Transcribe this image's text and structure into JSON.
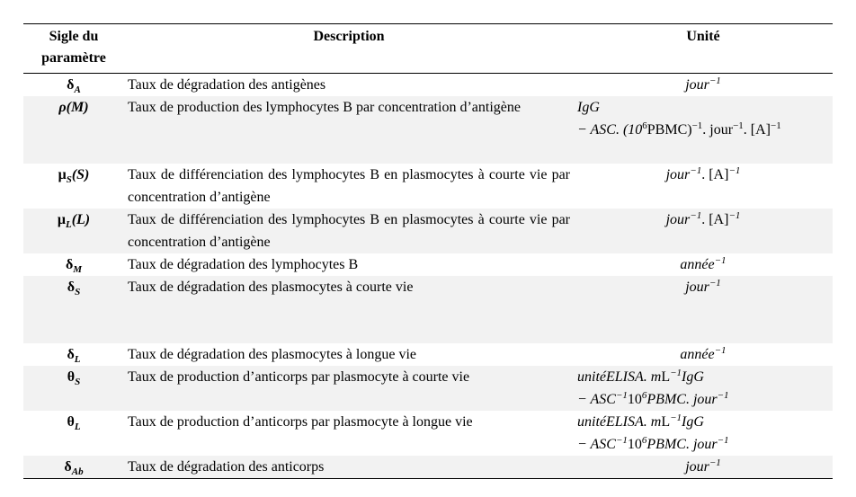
{
  "header": {
    "col1": "Sigle du paramètre",
    "col2": "Description",
    "col3": "Unité"
  },
  "rows": [
    {
      "sym": "δ",
      "sub": "A",
      "desc": "Taux de dégradation des antigènes",
      "unit1": "jour",
      "unit1_sup": "−1"
    },
    {
      "sym": "ρ",
      "arg": "(M)",
      "desc": "Taux de production des lymphocytes B par concentration d’antigène",
      "unit_line1": "IgG",
      "unit_line2_a": "− ASC. (10",
      "unit_line2_b": "6",
      "unit_line2_c": "PBMC)",
      "unit_line2_d": "−1",
      "unit_line2_e": ". jour",
      "unit_line2_f": "−1",
      "unit_line2_g": ". [A]",
      "unit_line2_h": "−1"
    },
    {
      "sym": "μ",
      "sub": "S",
      "arg": "(S)",
      "desc": "Taux de différenciation des lymphocytes B en plasmocytes à courte vie par concentration d’antigène",
      "unit_a": "jour",
      "unit_b": "−1",
      "unit_c": ". [A]",
      "unit_d": "−1"
    },
    {
      "sym": "μ",
      "sub": "L",
      "arg": "(L)",
      "desc": "Taux de différenciation des lymphocytes B en plasmocytes à courte vie par concentration d’antigène",
      "unit_a": "jour",
      "unit_b": "−1",
      "unit_c": ". [A]",
      "unit_d": "−1"
    },
    {
      "sym": "δ",
      "sub": "M",
      "desc": "Taux de dégradation des lymphocytes B",
      "unit1": "année",
      "unit1_sup": "−1"
    },
    {
      "sym": "δ",
      "sub": "S",
      "desc": "Taux de dégradation des plasmocytes à courte vie",
      "unit1": "jour",
      "unit1_sup": "−1"
    },
    {
      "sym": "δ",
      "sub": "L",
      "desc": "Taux de dégradation des plasmocytes à longue vie",
      "unit1": "année",
      "unit1_sup": "−1"
    },
    {
      "sym": "θ",
      "sub": "S",
      "desc": "Taux de production d’anticorps par plasmocyte à courte vie",
      "unit_l1_a": "unitéELISA. m",
      "unit_l1_b": "L",
      "unit_l1_c": "−1",
      "unit_l1_d": "IgG",
      "unit_l2_a": "− ASC",
      "unit_l2_b": "−1",
      "unit_l2_c": "10",
      "unit_l2_d": "6",
      "unit_l2_e": "PBMC. jour",
      "unit_l2_f": "−1"
    },
    {
      "sym": "θ",
      "sub": "L",
      "desc": "Taux de production d’anticorps par plasmocyte à longue vie",
      "unit_l1_a": "unitéELISA. m",
      "unit_l1_b": "L",
      "unit_l1_c": "−1",
      "unit_l1_d": "IgG",
      "unit_l2_a": "− ASC",
      "unit_l2_b": "−1",
      "unit_l2_c": "10",
      "unit_l2_d": "6",
      "unit_l2_e": "PBMC. jour",
      "unit_l2_f": "−1"
    },
    {
      "sym": "δ",
      "sub": "Ab",
      "desc": "Taux de dégradation des anticorps",
      "unit1": "jour",
      "unit1_sup": "−1"
    }
  ]
}
